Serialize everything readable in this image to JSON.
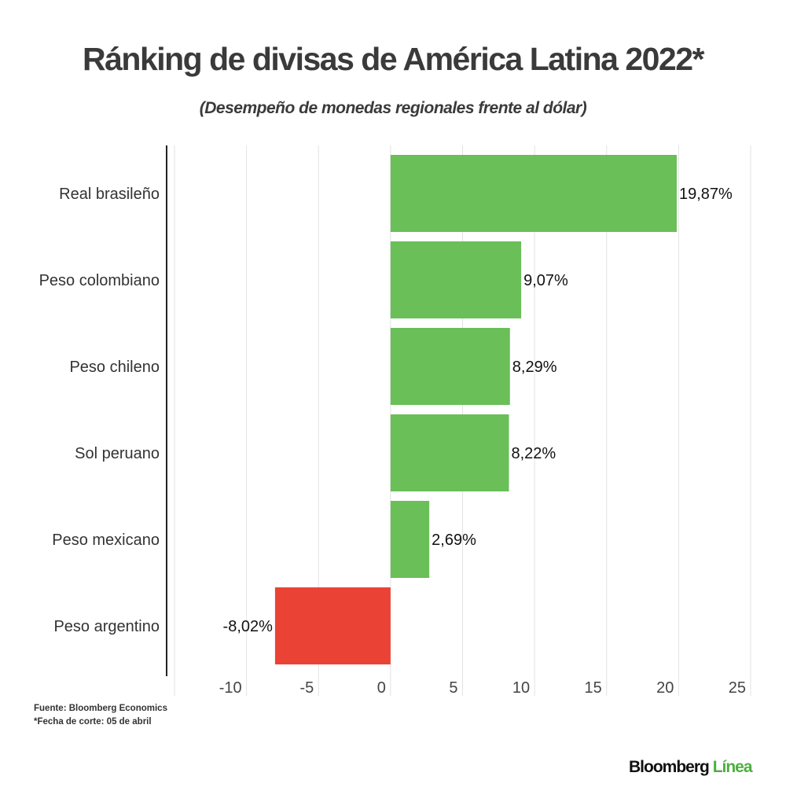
{
  "chart_data": {
    "type": "bar",
    "orientation": "horizontal",
    "title": "Ránking de divisas de América Latina 2022*",
    "subtitle": "(Desempeño de monedas regionales frente al dólar)",
    "categories": [
      "Real brasileño",
      "Peso colombiano",
      "Peso chileno",
      "Sol peruano",
      "Peso mexicano",
      "Peso argentino"
    ],
    "values": [
      19.87,
      9.07,
      8.29,
      8.22,
      2.69,
      -8.02
    ],
    "data_labels": [
      "19,87%",
      "9,07%",
      "8,29%",
      "8,22%",
      "2,69%",
      "-8,02%"
    ],
    "xlim": [
      -15,
      25
    ],
    "xticks": [
      -10,
      -5,
      0,
      5,
      10,
      15,
      20,
      25
    ],
    "grid": true,
    "colors": {
      "positive": "#6abf58",
      "negative": "#ea4336"
    }
  },
  "footer": {
    "source": "Fuente: Bloomberg Economics",
    "note": "*Fecha de corte: 05 de abril"
  },
  "logo": {
    "brand": "Bloomberg",
    "product": "Línea",
    "brand_color": "#111111",
    "product_color": "#4caf3f"
  }
}
